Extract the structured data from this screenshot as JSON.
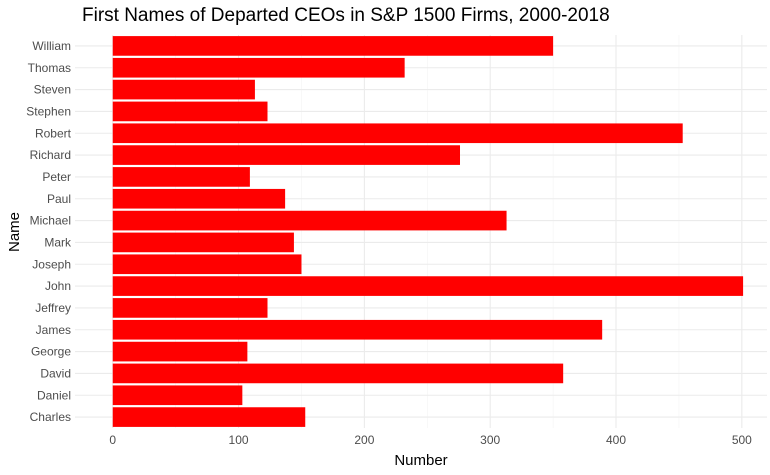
{
  "chart_data": {
    "type": "bar",
    "orientation": "horizontal",
    "title": "First Names of Departed CEOs in S&P 1500 Firms, 2000-2018",
    "xlabel": "Number",
    "ylabel": "Name",
    "categories": [
      "Charles",
      "Daniel",
      "David",
      "George",
      "James",
      "Jeffrey",
      "John",
      "Joseph",
      "Mark",
      "Michael",
      "Paul",
      "Peter",
      "Richard",
      "Robert",
      "Stephen",
      "Steven",
      "Thomas",
      "William"
    ],
    "values": [
      153,
      103,
      358,
      107,
      389,
      123,
      501,
      150,
      144,
      313,
      137,
      109,
      276,
      453,
      123,
      113,
      232,
      350
    ],
    "xlim": [
      -30,
      520
    ],
    "xticks": [
      0,
      100,
      200,
      300,
      400,
      500
    ],
    "bar_color": "#ff0000",
    "grid": true
  }
}
